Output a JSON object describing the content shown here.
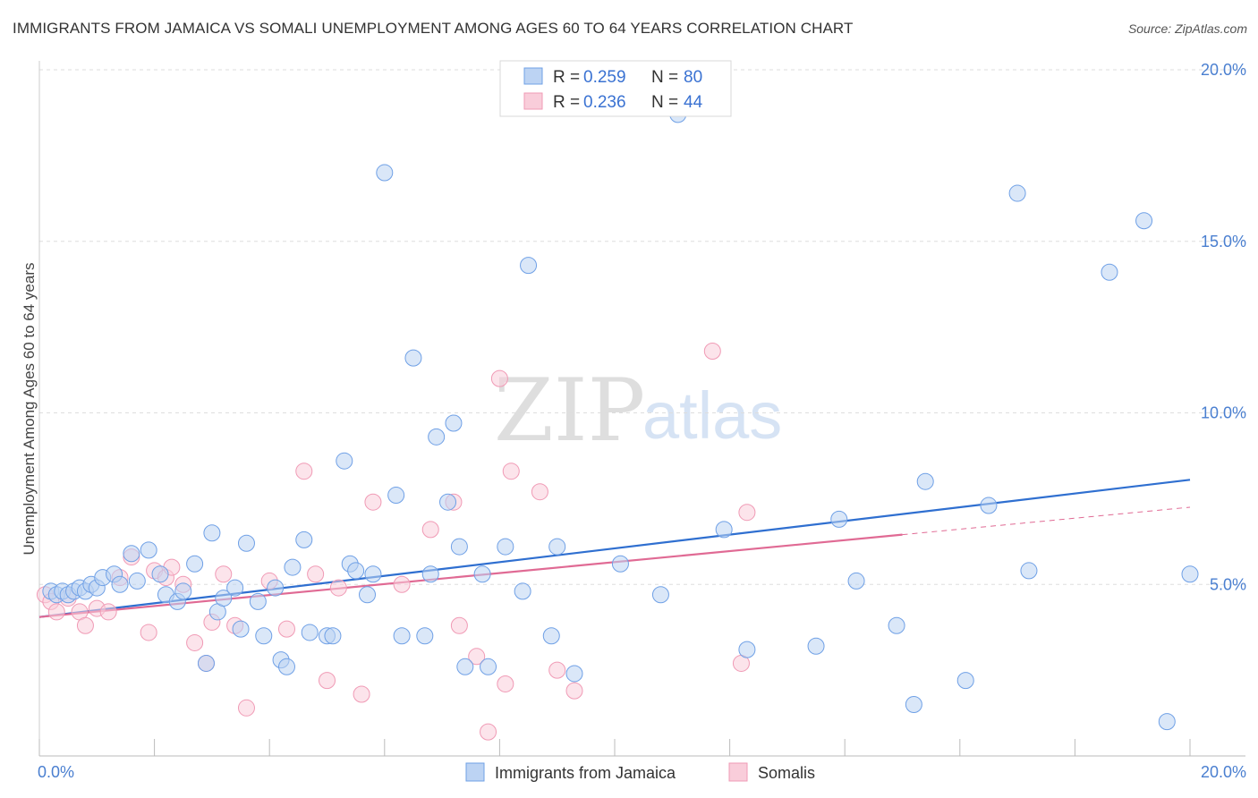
{
  "title": "IMMIGRANTS FROM JAMAICA VS SOMALI UNEMPLOYMENT AMONG AGES 60 TO 64 YEARS CORRELATION CHART",
  "source": "Source: ZipAtlas.com",
  "watermark": {
    "zip": "ZIP",
    "atlas": "atlas"
  },
  "legend": {
    "r_label": "R =",
    "n_label": "N =",
    "entries": [
      {
        "r": "0.259",
        "n": "80"
      },
      {
        "r": "0.236",
        "n": "44"
      }
    ]
  },
  "chart_data": {
    "type": "scatter",
    "xlabel": "",
    "ylabel": "Unemployment Among Ages 60 to 64 years",
    "xlim": [
      0,
      20
    ],
    "ylim": [
      0,
      20.0
    ],
    "x_tick_labels": [
      "0.0%",
      "20.0%"
    ],
    "y_ticks": [
      5,
      10,
      15,
      20
    ],
    "y_tick_labels": [
      "5.0%",
      "10.0%",
      "15.0%",
      "20.0%"
    ],
    "grid": true,
    "colors": {
      "jamaica": "#6fa0e6",
      "somali": "#f09ab5",
      "jamaica_line": "#2f6fd0",
      "somali_line": "#e06a94"
    },
    "series": [
      {
        "name": "Immigrants from Jamaica",
        "points": [
          [
            0.2,
            4.8
          ],
          [
            0.3,
            4.7
          ],
          [
            0.4,
            4.8
          ],
          [
            0.5,
            4.7
          ],
          [
            0.6,
            4.8
          ],
          [
            0.7,
            4.9
          ],
          [
            0.8,
            4.8
          ],
          [
            0.9,
            5.0
          ],
          [
            1.0,
            4.9
          ],
          [
            1.1,
            5.2
          ],
          [
            1.3,
            5.3
          ],
          [
            1.4,
            5.0
          ],
          [
            1.6,
            5.9
          ],
          [
            1.7,
            5.1
          ],
          [
            1.9,
            6.0
          ],
          [
            2.1,
            5.3
          ],
          [
            2.2,
            4.7
          ],
          [
            2.4,
            4.5
          ],
          [
            2.5,
            4.8
          ],
          [
            2.7,
            5.6
          ],
          [
            2.9,
            2.7
          ],
          [
            3.0,
            6.5
          ],
          [
            3.1,
            4.2
          ],
          [
            3.2,
            4.6
          ],
          [
            3.4,
            4.9
          ],
          [
            3.5,
            3.7
          ],
          [
            3.6,
            6.2
          ],
          [
            3.8,
            4.5
          ],
          [
            3.9,
            3.5
          ],
          [
            4.1,
            4.9
          ],
          [
            4.2,
            2.8
          ],
          [
            4.3,
            2.6
          ],
          [
            4.4,
            5.5
          ],
          [
            4.6,
            6.3
          ],
          [
            4.7,
            3.6
          ],
          [
            5.0,
            3.5
          ],
          [
            5.1,
            3.5
          ],
          [
            5.3,
            8.6
          ],
          [
            5.4,
            5.6
          ],
          [
            5.5,
            5.4
          ],
          [
            5.7,
            4.7
          ],
          [
            5.8,
            5.3
          ],
          [
            6.0,
            17.0
          ],
          [
            6.2,
            7.6
          ],
          [
            6.3,
            3.5
          ],
          [
            6.5,
            11.6
          ],
          [
            6.7,
            3.5
          ],
          [
            6.8,
            5.3
          ],
          [
            6.9,
            9.3
          ],
          [
            7.1,
            7.4
          ],
          [
            7.2,
            9.7
          ],
          [
            7.3,
            6.1
          ],
          [
            7.4,
            2.6
          ],
          [
            7.7,
            5.3
          ],
          [
            7.8,
            2.6
          ],
          [
            8.1,
            6.1
          ],
          [
            8.4,
            4.8
          ],
          [
            8.5,
            14.3
          ],
          [
            8.9,
            3.5
          ],
          [
            9.3,
            2.4
          ],
          [
            10.1,
            5.6
          ],
          [
            10.8,
            4.7
          ],
          [
            11.1,
            18.7
          ],
          [
            11.9,
            6.6
          ],
          [
            12.3,
            3.1
          ],
          [
            13.5,
            3.2
          ],
          [
            13.9,
            6.9
          ],
          [
            14.2,
            5.1
          ],
          [
            14.9,
            3.8
          ],
          [
            15.2,
            1.5
          ],
          [
            15.4,
            8.0
          ],
          [
            16.1,
            2.2
          ],
          [
            16.5,
            7.3
          ],
          [
            17.2,
            5.4
          ],
          [
            17.0,
            16.4
          ],
          [
            18.6,
            14.1
          ],
          [
            19.2,
            15.6
          ],
          [
            19.6,
            1.0
          ],
          [
            20.0,
            5.3
          ],
          [
            9.0,
            6.1
          ]
        ]
      },
      {
        "name": "Somalis",
        "points": [
          [
            0.1,
            4.7
          ],
          [
            0.2,
            4.5
          ],
          [
            0.3,
            4.2
          ],
          [
            0.5,
            4.6
          ],
          [
            0.7,
            4.2
          ],
          [
            0.8,
            3.8
          ],
          [
            1.0,
            4.3
          ],
          [
            1.2,
            4.2
          ],
          [
            1.4,
            5.2
          ],
          [
            1.6,
            5.8
          ],
          [
            1.9,
            3.6
          ],
          [
            2.0,
            5.4
          ],
          [
            2.2,
            5.2
          ],
          [
            2.3,
            5.5
          ],
          [
            2.5,
            5.0
          ],
          [
            2.7,
            3.3
          ],
          [
            2.9,
            2.7
          ],
          [
            3.0,
            3.9
          ],
          [
            3.2,
            5.3
          ],
          [
            3.4,
            3.8
          ],
          [
            3.6,
            1.4
          ],
          [
            4.0,
            5.1
          ],
          [
            4.3,
            3.7
          ],
          [
            4.6,
            8.3
          ],
          [
            4.8,
            5.3
          ],
          [
            5.0,
            2.2
          ],
          [
            5.2,
            4.9
          ],
          [
            5.6,
            1.8
          ],
          [
            5.8,
            7.4
          ],
          [
            6.3,
            5.0
          ],
          [
            6.8,
            6.6
          ],
          [
            7.2,
            7.4
          ],
          [
            7.3,
            3.8
          ],
          [
            7.6,
            2.9
          ],
          [
            7.8,
            0.7
          ],
          [
            8.0,
            11.0
          ],
          [
            8.1,
            2.1
          ],
          [
            8.2,
            8.3
          ],
          [
            8.7,
            7.7
          ],
          [
            9.0,
            2.5
          ],
          [
            9.3,
            1.9
          ],
          [
            11.7,
            11.8
          ],
          [
            12.2,
            2.7
          ],
          [
            12.3,
            7.1
          ]
        ]
      }
    ],
    "trend_lines": [
      {
        "series": "Immigrants from Jamaica",
        "x": [
          0,
          20
        ],
        "y": [
          4.05,
          8.05
        ]
      },
      {
        "series": "Somalis",
        "x": [
          0,
          15
        ],
        "y": [
          4.05,
          6.45
        ],
        "dashed_extension": {
          "x": [
            15,
            20
          ],
          "y": [
            6.45,
            7.25
          ]
        }
      }
    ]
  }
}
